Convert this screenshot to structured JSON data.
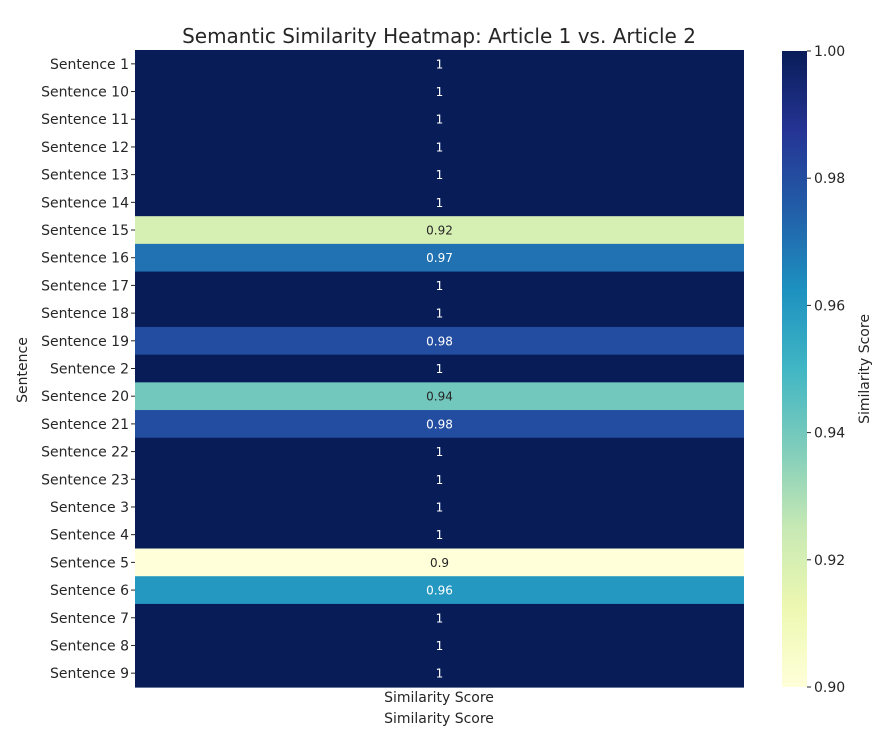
{
  "chart_data": {
    "type": "heatmap",
    "title": "Semantic Similarity Heatmap: Article 1 vs. Article 2",
    "ylabel": "Sentence",
    "xlabel": "Similarity Score",
    "columns": [
      "Similarity Score"
    ],
    "rows": [
      "Sentence 1",
      "Sentence 10",
      "Sentence 11",
      "Sentence 12",
      "Sentence 13",
      "Sentence 14",
      "Sentence 15",
      "Sentence 16",
      "Sentence 17",
      "Sentence 18",
      "Sentence 19",
      "Sentence 2",
      "Sentence 20",
      "Sentence 21",
      "Sentence 22",
      "Sentence 23",
      "Sentence 3",
      "Sentence 4",
      "Sentence 5",
      "Sentence 6",
      "Sentence 7",
      "Sentence 8",
      "Sentence 9"
    ],
    "values": [
      1.0,
      1.0,
      1.0,
      1.0,
      1.0,
      1.0,
      0.92,
      0.97,
      1.0,
      1.0,
      0.98,
      1.0,
      0.94,
      0.98,
      1.0,
      1.0,
      1.0,
      1.0,
      0.9,
      0.96,
      1.0,
      1.0,
      1.0
    ],
    "cell_labels": [
      "1",
      "1",
      "1",
      "1",
      "1",
      "1",
      "0.92",
      "0.97",
      "1",
      "1",
      "0.98",
      "1",
      "0.94",
      "0.98",
      "1",
      "1",
      "1",
      "1",
      "0.9",
      "0.96",
      "1",
      "1",
      "1"
    ],
    "colorbar": {
      "label": "Similarity Score",
      "range": [
        0.9,
        1.0
      ],
      "ticks": [
        "0.90",
        "0.92",
        "0.94",
        "0.96",
        "0.98",
        "1.00"
      ],
      "colormap": "YlGnBu"
    }
  }
}
